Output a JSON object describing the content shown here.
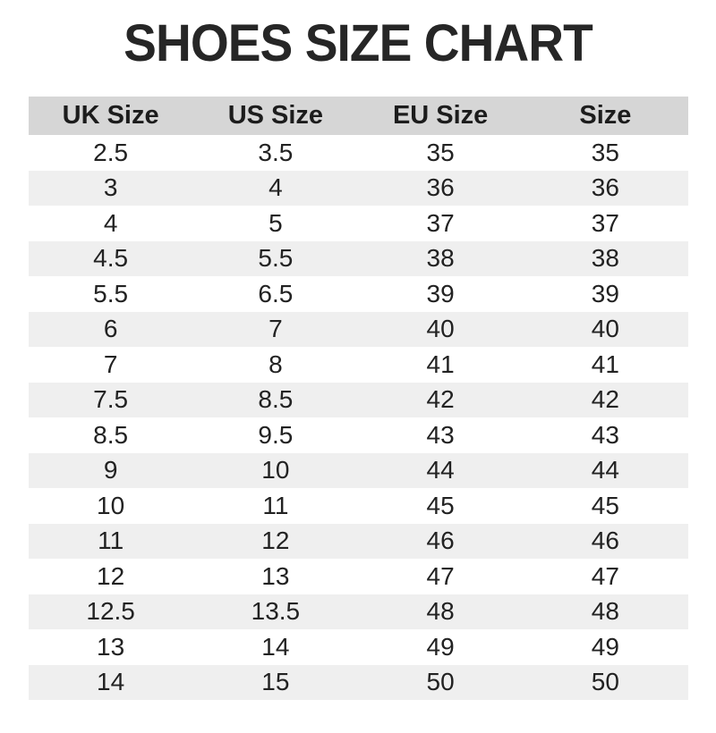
{
  "title": "SHOES SIZE CHART",
  "table": {
    "headers": [
      "UK Size",
      "US Size",
      "EU Size",
      "Size"
    ],
    "rows": [
      [
        "2.5",
        "3.5",
        "35",
        "35"
      ],
      [
        "3",
        "4",
        "36",
        "36"
      ],
      [
        "4",
        "5",
        "37",
        "37"
      ],
      [
        "4.5",
        "5.5",
        "38",
        "38"
      ],
      [
        "5.5",
        "6.5",
        "39",
        "39"
      ],
      [
        "6",
        "7",
        "40",
        "40"
      ],
      [
        "7",
        "8",
        "41",
        "41"
      ],
      [
        "7.5",
        "8.5",
        "42",
        "42"
      ],
      [
        "8.5",
        "9.5",
        "43",
        "43"
      ],
      [
        "9",
        "10",
        "44",
        "44"
      ],
      [
        "10",
        "11",
        "45",
        "45"
      ],
      [
        "11",
        "12",
        "46",
        "46"
      ],
      [
        "12",
        "13",
        "47",
        "47"
      ],
      [
        "12.5",
        "13.5",
        "48",
        "48"
      ],
      [
        "13",
        "14",
        "49",
        "49"
      ],
      [
        "14",
        "15",
        "50",
        "50"
      ]
    ]
  },
  "colors": {
    "header_bg": "#d6d6d6",
    "stripe_bg": "#efefef",
    "title_color": "#262626",
    "text_color": "#222222",
    "page_bg": "#ffffff"
  },
  "chart_data": {
    "type": "table",
    "title": "SHOES SIZE CHART",
    "columns": [
      "UK Size",
      "US Size",
      "EU Size",
      "Size"
    ],
    "rows": [
      [
        "2.5",
        "3.5",
        "35",
        "35"
      ],
      [
        "3",
        "4",
        "36",
        "36"
      ],
      [
        "4",
        "5",
        "37",
        "37"
      ],
      [
        "4.5",
        "5.5",
        "38",
        "38"
      ],
      [
        "5.5",
        "6.5",
        "39",
        "39"
      ],
      [
        "6",
        "7",
        "40",
        "40"
      ],
      [
        "7",
        "8",
        "41",
        "41"
      ],
      [
        "7.5",
        "8.5",
        "42",
        "42"
      ],
      [
        "8.5",
        "9.5",
        "43",
        "43"
      ],
      [
        "9",
        "10",
        "44",
        "44"
      ],
      [
        "10",
        "11",
        "45",
        "45"
      ],
      [
        "11",
        "12",
        "46",
        "46"
      ],
      [
        "12",
        "13",
        "47",
        "47"
      ],
      [
        "12.5",
        "13.5",
        "48",
        "48"
      ],
      [
        "13",
        "14",
        "49",
        "49"
      ],
      [
        "14",
        "15",
        "50",
        "50"
      ]
    ],
    "layout": {
      "header_background": "#d6d6d6",
      "zebra_striping": true,
      "stripe_background": "#efefef",
      "text_align": "center"
    }
  }
}
